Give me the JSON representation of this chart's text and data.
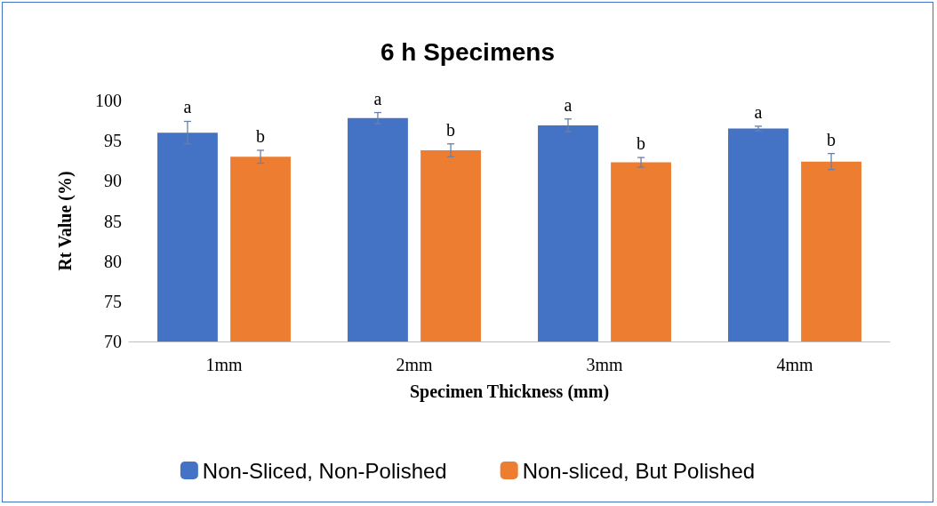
{
  "chart_data": {
    "type": "bar",
    "title": "6 h Specimens",
    "xlabel": "Specimen Thickness (mm)",
    "ylabel": "Rt Value (%)",
    "categories": [
      "1mm",
      "2mm",
      "3mm",
      "4mm"
    ],
    "series": [
      {
        "name": "Non-Sliced, Non-Polished",
        "color": "#4472c4",
        "values": [
          96.0,
          97.8,
          96.9,
          96.5
        ],
        "errors": [
          1.4,
          0.7,
          0.8,
          0.3
        ]
      },
      {
        "name": "Non-sliced, But Polished",
        "color": "#ed7d31",
        "values": [
          93.0,
          93.8,
          92.3,
          92.4
        ],
        "errors": [
          0.8,
          0.8,
          0.6,
          1.0
        ]
      }
    ],
    "annotations": [
      "a",
      "b",
      "a",
      "b",
      "a",
      "b",
      "a",
      "b"
    ],
    "ylim": [
      70,
      100
    ],
    "yticks": [
      70,
      75,
      80,
      85,
      90,
      95,
      100
    ],
    "grid": false,
    "legend": "bottom"
  }
}
